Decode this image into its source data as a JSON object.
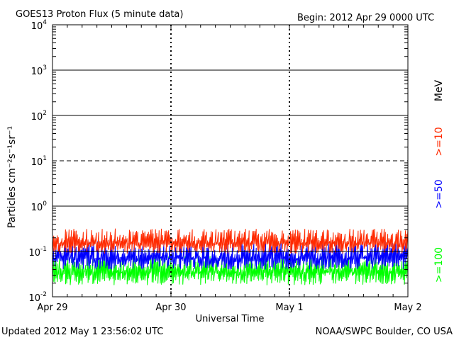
{
  "chart_data": {
    "type": "line",
    "title": "GOES13 Proton Flux (5 minute data)",
    "begin_label": "Begin: 2012 Apr 29 0000 UTC",
    "xlabel": "Universal Time",
    "ylabel": "Particles cm⁻²s⁻¹sr⁻¹",
    "y_scale": "log",
    "ylim": [
      0.01,
      10000
    ],
    "x_ticks": [
      "Apr 29",
      "Apr 30",
      "May 1",
      "May 2"
    ],
    "x_range": [
      "2012-04-29T00:00Z",
      "2012-05-02T00:00Z"
    ],
    "y_ticks": [
      {
        "base": "10",
        "exp": "-2"
      },
      {
        "base": "10",
        "exp": "-1"
      },
      {
        "base": "10",
        "exp": "0"
      },
      {
        "base": "10",
        "exp": "1"
      },
      {
        "base": "10",
        "exp": "2"
      },
      {
        "base": "10",
        "exp": "3"
      },
      {
        "base": "10",
        "exp": "4"
      }
    ],
    "thresholds": [
      {
        "value": 10,
        "style": "dashed"
      },
      {
        "value": 0.1,
        "style": "solid"
      }
    ],
    "energy_unit": "MeV",
    "series": [
      {
        "name": ">=10",
        "color": "#ff2a00",
        "baseline": 0.15,
        "spread_min": 0.09,
        "spread_max": 0.32
      },
      {
        "name": ">=50",
        "color": "#0000ff",
        "baseline": 0.07,
        "spread_min": 0.04,
        "spread_max": 0.17
      },
      {
        "name": ">=100",
        "color": "#00ff00",
        "baseline": 0.035,
        "spread_min": 0.018,
        "spread_max": 0.08
      }
    ]
  },
  "footer": {
    "updated": "Updated 2012 May  1 23:56:02 UTC",
    "source": "NOAA/SWPC Boulder, CO USA"
  }
}
